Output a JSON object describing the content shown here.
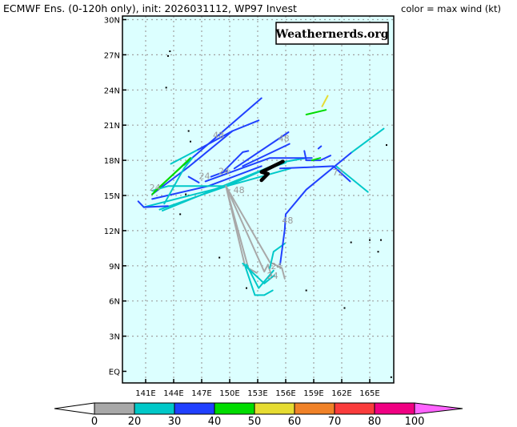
{
  "header": {
    "title": "ECMWF Ens. (0-120h only), init: 2026031112, WP97 Invest",
    "legend_note": "color = max wind (kt)"
  },
  "watermark": "Weathernerds.org",
  "chart_data": {
    "type": "map-tracks",
    "lon_range": [
      139.5,
      168.5
    ],
    "lat_range": [
      -1,
      30.5
    ],
    "lat_ticks": [
      {
        "v": 30,
        "t": "30N"
      },
      {
        "v": 27,
        "t": "27N"
      },
      {
        "v": 24,
        "t": "24N"
      },
      {
        "v": 21,
        "t": "21N"
      },
      {
        "v": 18,
        "t": "18N"
      },
      {
        "v": 15,
        "t": "15N"
      },
      {
        "v": 12,
        "t": "12N"
      },
      {
        "v": 9,
        "t": "9N"
      },
      {
        "v": 6,
        "t": "6N"
      },
      {
        "v": 3,
        "t": "3N"
      },
      {
        "v": 0,
        "t": "EQ"
      }
    ],
    "lon_ticks": [
      {
        "v": 141,
        "t": "141E"
      },
      {
        "v": 144,
        "t": "144E"
      },
      {
        "v": 147,
        "t": "147E"
      },
      {
        "v": 150,
        "t": "150E"
      },
      {
        "v": 153,
        "t": "153E"
      },
      {
        "v": 156,
        "t": "156E"
      },
      {
        "v": 159,
        "t": "159E"
      },
      {
        "v": 162,
        "t": "162E"
      },
      {
        "v": 165,
        "t": "165E"
      }
    ],
    "colorbar": {
      "bins": [
        {
          "range": "0-20",
          "color": "#a8a8a8"
        },
        {
          "range": "20-30",
          "color": "#00c8c8"
        },
        {
          "range": "30-40",
          "color": "#2040ff"
        },
        {
          "range": "40-50",
          "color": "#00dc00"
        },
        {
          "range": "50-60",
          "color": "#e6dc32"
        },
        {
          "range": "60-70",
          "color": "#f08228"
        },
        {
          "range": "70-80",
          "color": "#fa3c3c"
        },
        {
          "range": "80-100",
          "color": "#f00082"
        }
      ],
      "under_color": "#ffffff",
      "over_color": "#ff64ff",
      "labels": [
        "0",
        "20",
        "30",
        "40",
        "50",
        "60",
        "70",
        "80",
        "100"
      ]
    },
    "tracks": [
      {
        "c": "#2040ff",
        "p": [
          [
            141.7,
            14.7
          ],
          [
            147.7,
            15.8
          ],
          [
            153.4,
            17.5
          ]
        ]
      },
      {
        "c": "#2040ff",
        "p": [
          [
            141.7,
            15.1
          ],
          [
            145.7,
            17.5
          ],
          [
            150.3,
            20.5
          ],
          [
            153.1,
            21.4
          ]
        ]
      },
      {
        "c": "#2040ff",
        "p": [
          [
            145.1,
            17.6
          ],
          [
            153.4,
            23.3
          ]
        ]
      },
      {
        "c": "#00c8c8",
        "p": [
          [
            143.7,
            17.7
          ],
          [
            146.6,
            18.9
          ]
        ]
      },
      {
        "c": "#2040ff",
        "p": [
          [
            146.6,
            18.9
          ],
          [
            150.3,
            20.5
          ]
        ]
      },
      {
        "c": "#00c8c8",
        "p": [
          [
            140.8,
            14.0
          ],
          [
            149.7,
            15.8
          ],
          [
            153.4,
            17.1
          ],
          [
            156.0,
            17.8
          ]
        ]
      },
      {
        "c": "#00c8c8",
        "p": [
          [
            142.5,
            13.8
          ],
          [
            149.7,
            15.8
          ],
          [
            156.5,
            17.3
          ]
        ]
      },
      {
        "c": "#00c8c8",
        "p": [
          [
            142.8,
            13.7
          ],
          [
            155.4,
            17.8
          ],
          [
            158.2,
            18.2
          ]
        ]
      },
      {
        "c": "#2040ff",
        "p": [
          [
            140.2,
            14.5
          ],
          [
            140.8,
            14.0
          ],
          [
            143.4,
            14.1
          ]
        ]
      },
      {
        "c": "#00c8c8",
        "p": [
          [
            141.7,
            15.4
          ],
          [
            143.4,
            15.8
          ],
          [
            149.4,
            15.8
          ]
        ]
      },
      {
        "c": "#2040ff",
        "p": [
          [
            145.6,
            16.6
          ],
          [
            146.7,
            16.1
          ]
        ]
      },
      {
        "c": "#2040ff",
        "p": [
          [
            147.4,
            16.2
          ],
          [
            154.3,
            18.2
          ],
          [
            158.8,
            18.2
          ]
        ]
      },
      {
        "c": "#2040ff",
        "p": [
          [
            150.5,
            17.3
          ],
          [
            156.3,
            20.4
          ]
        ]
      },
      {
        "c": "#2040ff",
        "p": [
          [
            151.4,
            17.5
          ],
          [
            156.4,
            19.4
          ]
        ]
      },
      {
        "c": "#2040ff",
        "p": [
          [
            148.0,
            16.6
          ],
          [
            149.7,
            17.1
          ]
        ]
      },
      {
        "c": "#2040ff",
        "p": [
          [
            149.4,
            17.1
          ],
          [
            151.4,
            18.7
          ],
          [
            152.0,
            18.8
          ]
        ]
      },
      {
        "c": "#2040ff",
        "p": [
          [
            155.4,
            17.3
          ],
          [
            161.1,
            17.5
          ],
          [
            162.9,
            16.2
          ]
        ]
      },
      {
        "c": "#00c8c8",
        "p": [
          [
            161.4,
            17.5
          ],
          [
            164.8,
            15.3
          ]
        ]
      },
      {
        "c": "#2040ff",
        "p": [
          [
            158.0,
            18.8
          ],
          [
            158.2,
            18.0
          ],
          [
            159.7,
            18.0
          ],
          [
            160.8,
            18.4
          ]
        ]
      },
      {
        "c": "#00dc00",
        "p": [
          [
            158.8,
            18.0
          ],
          [
            159.7,
            18.2
          ]
        ]
      },
      {
        "c": "#00dc00",
        "p": [
          [
            158.2,
            21.9
          ],
          [
            160.3,
            22.3
          ]
        ]
      },
      {
        "c": "#e6dc32",
        "p": [
          [
            159.9,
            22.6
          ],
          [
            160.5,
            23.5
          ]
        ]
      },
      {
        "c": "#2040ff",
        "p": [
          [
            159.5,
            19.0
          ],
          [
            159.8,
            19.2
          ]
        ]
      },
      {
        "c": "#00c8c8",
        "p": [
          [
            143.0,
            14.3
          ],
          [
            145.1,
            17.3
          ],
          [
            146.0,
            18.2
          ]
        ]
      },
      {
        "c": "#a8a8a8",
        "p": [
          [
            149.6,
            15.8
          ],
          [
            151.6,
            9.1
          ]
        ]
      },
      {
        "c": "#a8a8a8",
        "p": [
          [
            149.6,
            15.8
          ],
          [
            152.0,
            8.8
          ],
          [
            152.9,
            8.4
          ]
        ]
      },
      {
        "c": "#a8a8a8",
        "p": [
          [
            149.6,
            15.8
          ],
          [
            153.7,
            8.5
          ],
          [
            154.1,
            9.1
          ],
          [
            154.5,
            8.1
          ]
        ]
      },
      {
        "c": "#a8a8a8",
        "p": [
          [
            149.6,
            15.8
          ],
          [
            154.3,
            9.3
          ],
          [
            155.6,
            8.8
          ],
          [
            155.9,
            7.9
          ]
        ]
      },
      {
        "c": "#00c8c8",
        "p": [
          [
            151.6,
            9.1
          ],
          [
            152.7,
            6.5
          ],
          [
            153.7,
            6.5
          ],
          [
            154.6,
            6.9
          ]
        ]
      },
      {
        "c": "#00c8c8",
        "p": [
          [
            151.8,
            9.1
          ],
          [
            153.1,
            7.1
          ],
          [
            154.7,
            8.6
          ]
        ]
      },
      {
        "c": "#00c8c8",
        "p": [
          [
            151.4,
            9.2
          ],
          [
            153.7,
            7.5
          ],
          [
            154.8,
            8.2
          ]
        ]
      },
      {
        "c": "#00c8c8",
        "p": [
          [
            154.3,
            8.8
          ],
          [
            154.7,
            10.2
          ],
          [
            155.9,
            10.9
          ]
        ]
      },
      {
        "c": "#2040ff",
        "p": [
          [
            155.4,
            9.1
          ],
          [
            155.9,
            12.1
          ],
          [
            156.0,
            13.4
          ],
          [
            158.2,
            15.5
          ],
          [
            163.1,
            18.7
          ]
        ]
      },
      {
        "c": "#00c8c8",
        "p": [
          [
            163.1,
            18.7
          ],
          [
            166.5,
            20.7
          ]
        ]
      },
      {
        "c": "#00dc00",
        "p": [
          [
            141.7,
            15.1
          ],
          [
            145.8,
            18.2
          ]
        ]
      },
      {
        "c": "#00dc00",
        "p": [
          [
            141.9,
            15.3
          ],
          [
            145.6,
            18.0
          ]
        ]
      },
      {
        "c": "#000000",
        "w": 4.5,
        "p": [
          [
            153.4,
            16.3
          ],
          [
            154.1,
            16.85
          ],
          [
            153.4,
            17.0
          ],
          [
            155.7,
            17.9
          ]
        ]
      }
    ],
    "hour_labels": [
      {
        "t": "48",
        "lon": 148.8,
        "lat": 19.9
      },
      {
        "t": "48",
        "lon": 155.8,
        "lat": 19.6
      },
      {
        "t": "48",
        "lon": 151.0,
        "lat": 15.2
      },
      {
        "t": "48",
        "lon": 156.2,
        "lat": 12.6
      },
      {
        "t": "24",
        "lon": 142.0,
        "lat": 15.4
      },
      {
        "t": "24",
        "lon": 147.3,
        "lat": 16.4
      },
      {
        "t": "24",
        "lon": 149.4,
        "lat": 16.8
      },
      {
        "t": "24",
        "lon": 155.0,
        "lat": 8.7
      },
      {
        "t": "24",
        "lon": 154.6,
        "lat": 7.9
      },
      {
        "t": "72",
        "lon": 161.6,
        "lat": 16.7
      }
    ],
    "islands": [
      [
        143.4,
        26.9
      ],
      [
        143.6,
        27.3
      ],
      [
        143.2,
        24.2
      ],
      [
        145.6,
        20.5
      ],
      [
        145.8,
        19.6
      ],
      [
        145.6,
        15.0
      ],
      [
        145.3,
        15.1
      ],
      [
        144.7,
        13.4
      ],
      [
        163.0,
        11.0
      ],
      [
        165.0,
        11.2
      ],
      [
        166.2,
        11.2
      ],
      [
        165.9,
        10.2
      ],
      [
        158.2,
        6.9
      ],
      [
        162.3,
        5.4
      ],
      [
        151.8,
        7.1
      ],
      [
        148.9,
        9.7
      ],
      [
        166.8,
        19.3
      ],
      [
        167.3,
        -0.5
      ]
    ]
  }
}
